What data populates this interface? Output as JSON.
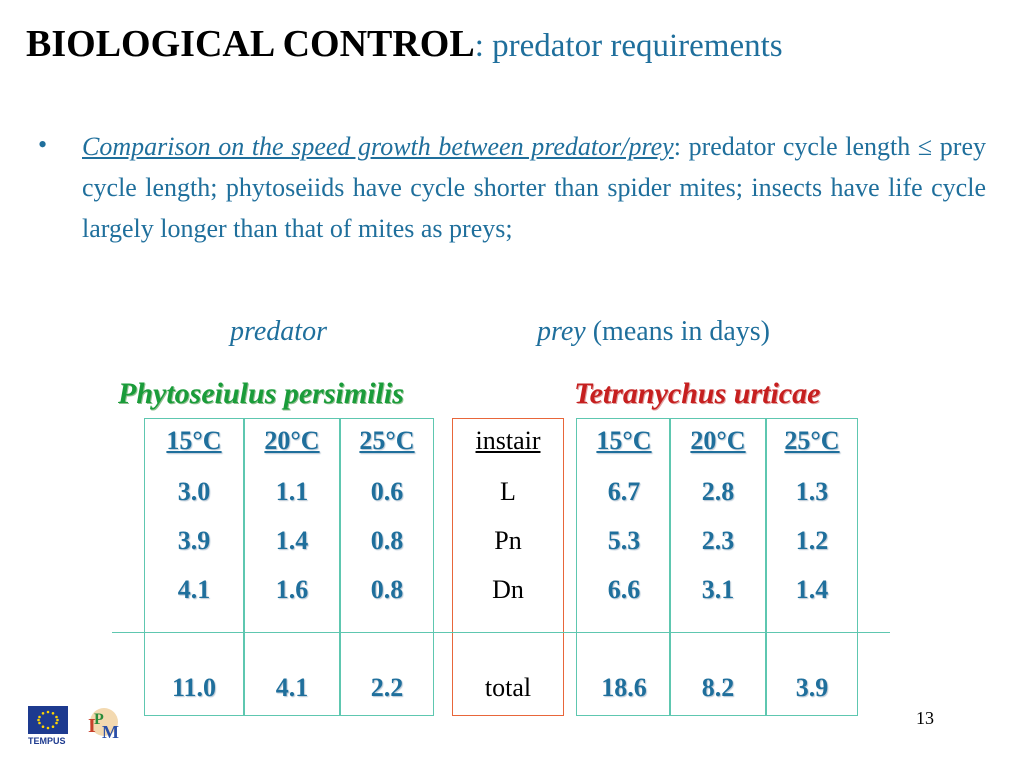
{
  "title": {
    "bold": "BIOLOGICAL CONTROL",
    "sub": ": predator requirements"
  },
  "bullet": {
    "symbol": "•",
    "lead": "Comparison on the speed growth between predator/prey",
    "text": ": predator cycle length ≤ prey cycle length; phytoseiids have cycle shorter than spider mites; insects have life cycle largely longer than that of mites as preys;"
  },
  "headers": {
    "predator": "predator",
    "prey": "prey",
    "units": "(means in days)"
  },
  "species": {
    "predator": "Phytoseiulus persimilis",
    "prey": "Tetranychus urticae"
  },
  "table": {
    "temps": [
      "15°C",
      "20°C",
      "25°C"
    ],
    "stages": [
      "instair",
      "L",
      "Pn",
      "Dn",
      "total"
    ],
    "predator": [
      [
        "3.0",
        "1.1",
        "0.6"
      ],
      [
        "3.9",
        "1.4",
        "0.8"
      ],
      [
        "4.1",
        "1.6",
        "0.8"
      ],
      [
        "11.0",
        "4.1",
        "2.2"
      ]
    ],
    "prey": [
      [
        "6.7",
        "2.8",
        "1.3"
      ],
      [
        "5.3",
        "2.3",
        "1.2"
      ],
      [
        "6.6",
        "3.1",
        "1.4"
      ],
      [
        "18.6",
        "8.2",
        "3.9"
      ]
    ]
  },
  "footer": {
    "page": "13",
    "eu_label": "TEMPUS",
    "logo": "IPM"
  },
  "colors": {
    "accent": "#1f6f9c",
    "predator": "#1a9c3a",
    "prey": "#c61f1f",
    "border_teal": "#5ec7b0",
    "border_orange": "#e8663a"
  }
}
